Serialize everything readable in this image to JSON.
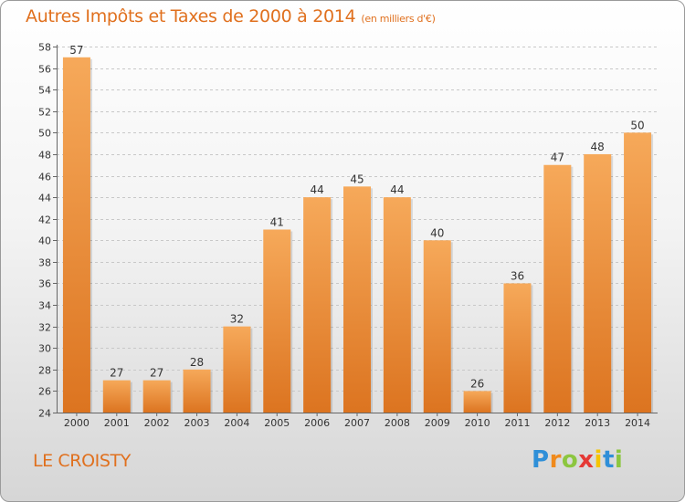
{
  "header": {
    "title": "Autres Impôts et Taxes de 2000 à 2014",
    "unit": "(en milliers d'€)"
  },
  "commune": "LE CROISTY",
  "logo": {
    "text": "Proxiti"
  },
  "colors": {
    "title": "#e0701e",
    "bar_light": "#f6a95a",
    "bar_dark": "#dc7420",
    "grid": "#c8c8c8",
    "axis_text": "#333333"
  },
  "chart_data": {
    "type": "bar",
    "title": "Autres Impôts et Taxes de 2000 à 2014",
    "subtitle": "(en milliers d'€)",
    "categories": [
      "2000",
      "2001",
      "2002",
      "2003",
      "2004",
      "2005",
      "2006",
      "2007",
      "2008",
      "2009",
      "2010",
      "2011",
      "2012",
      "2013",
      "2014"
    ],
    "values": [
      57,
      27,
      27,
      28,
      32,
      41,
      44,
      45,
      44,
      40,
      26,
      36,
      47,
      48,
      50
    ],
    "ylim": [
      24,
      58
    ],
    "yticks": [
      24,
      26,
      28,
      30,
      32,
      34,
      36,
      38,
      40,
      42,
      44,
      46,
      48,
      50,
      52,
      54,
      56,
      58
    ],
    "grid": "horizontal dashed",
    "legend": "none"
  }
}
